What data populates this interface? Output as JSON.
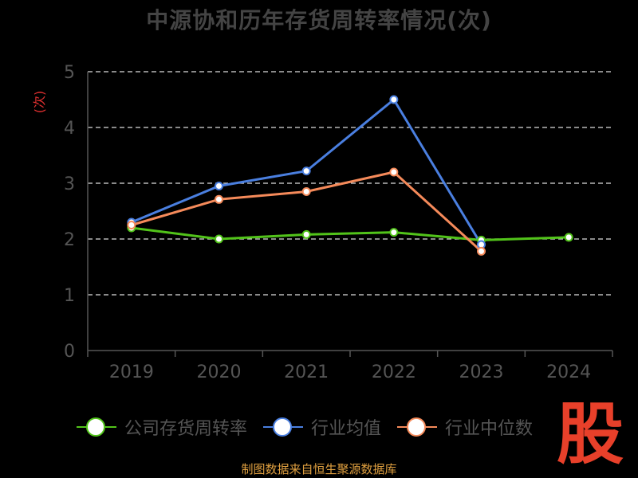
{
  "chart_data": {
    "type": "line",
    "title": "中源协和历年存货周转率情况(次)",
    "ylabel": "(次)",
    "categories": [
      "2019",
      "2020",
      "2021",
      "2022",
      "2023",
      "2024"
    ],
    "ylim": [
      0,
      5
    ],
    "yticks": [
      "0",
      "1",
      "2",
      "3",
      "4",
      "5"
    ],
    "grid": true,
    "legend_position": "bottom",
    "series": [
      {
        "name": "公司存货周转率",
        "color": "#52c41a",
        "values": [
          2.2,
          2.0,
          2.08,
          2.12,
          1.98,
          2.03
        ]
      },
      {
        "name": "行业均值",
        "color": "#4a7fe0",
        "values": [
          2.3,
          2.95,
          3.22,
          4.5,
          1.9,
          null
        ]
      },
      {
        "name": "行业中位数",
        "color": "#f58a5a",
        "values": [
          2.25,
          2.71,
          2.85,
          3.2,
          1.78,
          null
        ]
      }
    ]
  },
  "source": "制图数据来自恒生聚源数据库",
  "watermark": "股"
}
